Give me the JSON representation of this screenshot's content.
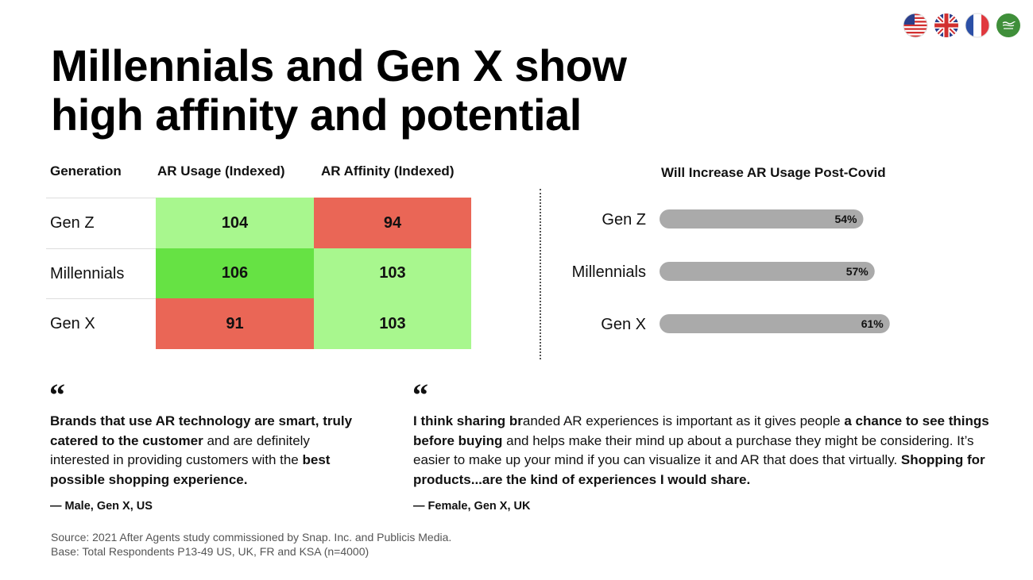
{
  "title": {
    "line1": "Millennials and Gen X show",
    "line2": "high affinity and potential"
  },
  "flags": [
    {
      "name": "us-flag-icon"
    },
    {
      "name": "uk-flag-icon"
    },
    {
      "name": "france-flag-icon"
    },
    {
      "name": "saudi-arabia-flag-icon"
    }
  ],
  "table": {
    "headers": [
      "Generation",
      "AR Usage (Indexed)",
      "AR Affinity (Indexed)"
    ],
    "rows": [
      {
        "label": "Gen Z",
        "usage": "104",
        "affinity": "94"
      },
      {
        "label": "Millennials",
        "usage": "106",
        "affinity": "103"
      },
      {
        "label": "Gen X",
        "usage": "91",
        "affinity": "103"
      }
    ],
    "colors": {
      "light_green": "#a8f78e",
      "bright_green": "#66e244",
      "red": "#ea6656"
    }
  },
  "chart_data": {
    "type": "bar",
    "orientation": "horizontal",
    "title": "Will Increase AR Usage Post-Covid",
    "categories": [
      "Gen Z",
      "Millennials",
      "Gen X"
    ],
    "values": [
      54,
      57,
      61
    ],
    "labels": [
      "54%",
      "57%",
      "61%"
    ],
    "unit": "%",
    "bar_color": "#aaaaaa",
    "grid": false
  },
  "quotes": [
    {
      "parts": [
        {
          "text": "Brands that use AR technology are smart, truly catered to the customer",
          "bold": true
        },
        {
          "text": " and are definitely interested in providing customers with the ",
          "bold": false
        },
        {
          "text": "best possible shopping experience.",
          "bold": true
        }
      ],
      "attribution": "— Male, Gen X, US"
    },
    {
      "parts": [
        {
          "text": "I think sharing br",
          "bold": true
        },
        {
          "text": "anded AR experiences is important as it gives people ",
          "bold": false
        },
        {
          "text": "a chance to see things before buying",
          "bold": true
        },
        {
          "text": " and helps make their mind up about a purchase they might be considering. It’s easier to make up your mind if you can visualize it and AR that does that virtually. ",
          "bold": false
        },
        {
          "text": "Shopping for products...are the kind of experiences I would share.",
          "bold": true
        }
      ],
      "attribution": "— Female, Gen X, UK"
    }
  ],
  "quote_mark": "“",
  "source": {
    "line1": "Source: 2021 After Agents study commissioned by Snap. Inc. and Publicis Media.",
    "line2": "Base: Total Respondents P13-49 US, UK, FR and KSA (n=4000)"
  }
}
